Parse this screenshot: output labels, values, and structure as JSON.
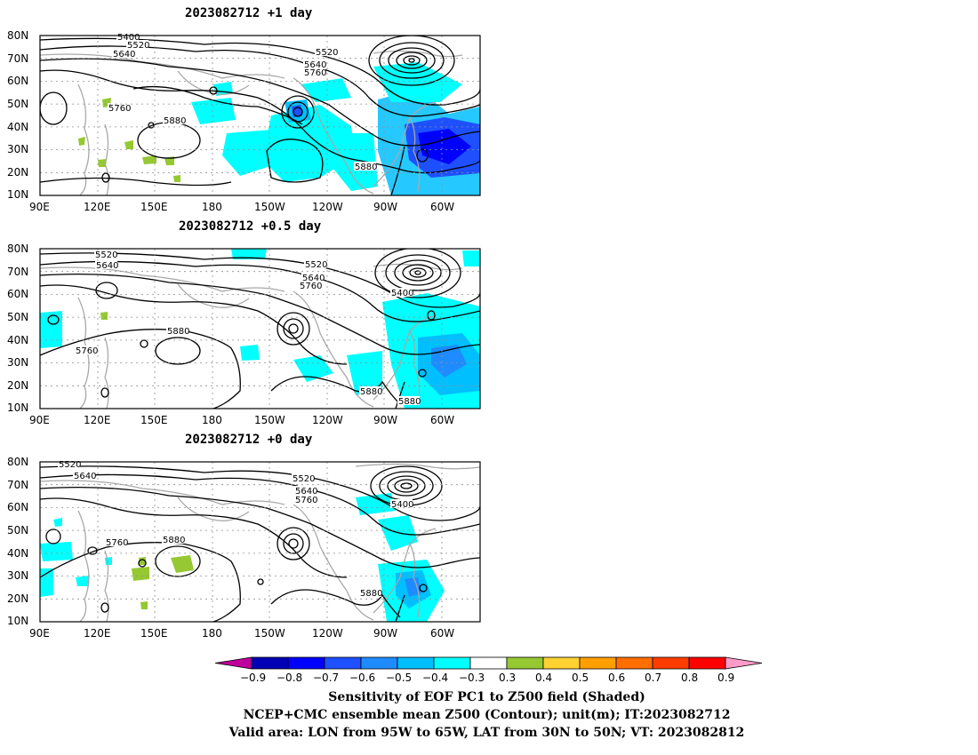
{
  "panels": [
    {
      "title": "2023082712  +1 day",
      "labels": [
        "5400",
        "5520",
        "5640",
        "5520",
        "5640",
        "5760",
        "5760",
        "5880",
        "5880"
      ]
    },
    {
      "title": "2023082712  +0.5 day",
      "labels": [
        "5520",
        "5640",
        "5520",
        "5640",
        "5760",
        "5400",
        "5880",
        "5760",
        "5880",
        "5880"
      ]
    },
    {
      "title": "2023082712  +0 day",
      "labels": [
        "5520",
        "5640",
        "5520",
        "5640",
        "5760",
        "5400",
        "5760",
        "5880",
        "5880"
      ]
    }
  ],
  "lat_ticks": [
    "80N",
    "70N",
    "60N",
    "50N",
    "40N",
    "30N",
    "20N",
    "10N"
  ],
  "lon_ticks": [
    "90E",
    "120E",
    "150E",
    "180",
    "150W",
    "120W",
    "90W",
    "60W"
  ],
  "colorbar": {
    "colors": [
      "#c0009c",
      "#0000b4",
      "#0000ff",
      "#1e50ff",
      "#1e8cff",
      "#00bfff",
      "#00ffff",
      "#ffffff",
      "#96c832",
      "#ffd232",
      "#ffa000",
      "#ff6e00",
      "#ff3c00",
      "#ff0000",
      "#ff9bc8"
    ],
    "labels": [
      "−0.9",
      "−0.8",
      "−0.7",
      "−0.6",
      "−0.5",
      "−0.4",
      "−0.3",
      "0.3",
      "0.4",
      "0.5",
      "0.6",
      "0.7",
      "0.8",
      "0.9"
    ]
  },
  "captions": [
    "Sensitivity of EOF PC1 to Z500 field (Shaded)",
    "NCEP+CMC ensemble mean Z500 (Contour); unit(m); IT:2023082712",
    "Valid area: LON from 95W to 65W, LAT from 30N to 50N; VT: 2023082812"
  ]
}
